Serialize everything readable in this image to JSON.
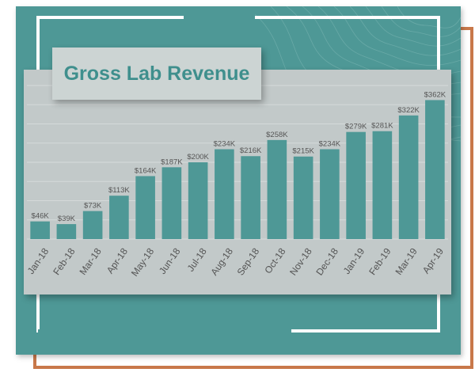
{
  "colors": {
    "panel": "#4e9896",
    "card": "#c2c9c9",
    "title_box": "#ccd4d3",
    "title_text": "#3f8f8d",
    "bar": "#4e9896",
    "label_text": "#555555",
    "frame_orange": "#c8784a",
    "frame_white": "#ffffff"
  },
  "chart_data": {
    "type": "bar",
    "title": "Gross Lab Revenue",
    "xlabel": "",
    "ylabel": "",
    "categories": [
      "Jan-18",
      "Feb-18",
      "Mar-18",
      "Apr-18",
      "May-18",
      "Jun-18",
      "Jul-18",
      "Aug-18",
      "Sep-18",
      "Oct-18",
      "Nov-18",
      "Dec-18",
      "Jan-19",
      "Feb-19",
      "Mar-19",
      "Apr-19"
    ],
    "values": [
      46,
      39,
      73,
      113,
      164,
      187,
      200,
      234,
      216,
      258,
      215,
      234,
      279,
      281,
      322,
      362
    ],
    "value_labels": [
      "$46K",
      "$39K",
      "$73K",
      "$113K",
      "$164K",
      "$187K",
      "$200K",
      "$234K",
      "$216K",
      "$258K",
      "$215K",
      "$234K",
      "$279K",
      "$281K",
      "$322K",
      "$362K"
    ],
    "ylim": [
      0,
      400
    ],
    "grid": true,
    "legend": "none"
  }
}
